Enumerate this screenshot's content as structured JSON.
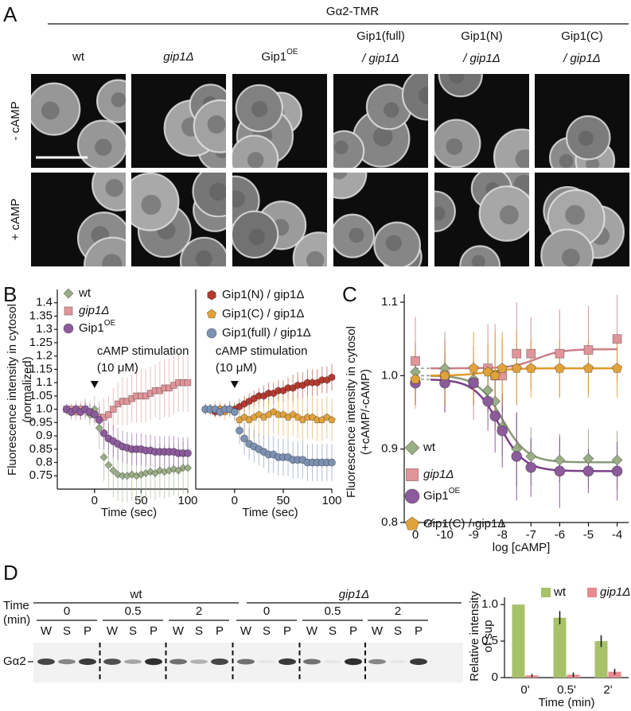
{
  "panel_labels": [
    "A",
    "B",
    "C",
    "D"
  ],
  "figure_a": {
    "title": "Gα2-TMR",
    "columns": [
      {
        "lines": [
          "wt"
        ]
      },
      {
        "lines": [
          "gip1Δ"
        ],
        "italic_lines": [
          0
        ]
      },
      {
        "lines": [
          "Gip1"
        ],
        "sup": "OE"
      },
      {
        "lines": [
          "Gip1(full)",
          "/ gip1Δ"
        ],
        "italic_lines": [
          1
        ]
      },
      {
        "lines": [
          "Gip1(N)",
          "/ gip1Δ"
        ],
        "italic_lines": [
          1
        ]
      },
      {
        "lines": [
          "Gip1(C)",
          "/ gip1Δ"
        ],
        "italic_lines": [
          1
        ]
      }
    ],
    "rows": [
      "- cAMP",
      "+ cAMP"
    ]
  },
  "chart_data": [
    {
      "type": "line",
      "ylabel": [
        "Fluorescence intensity in cytosol",
        "(normalized)"
      ],
      "xlabel": "Time (sec)",
      "annotation": [
        "cAMP stimulation",
        "(10 μM)"
      ],
      "stimulation_time": 0,
      "xlim": [
        -40,
        100
      ],
      "xticks": [
        0,
        50,
        100
      ],
      "ylim": [
        0.7,
        1.45
      ],
      "yticks": [
        0.75,
        0.8,
        0.85,
        0.9,
        0.95,
        {
          "value": 1,
          "label": "1.0"
        },
        1.05,
        1.1,
        1.15,
        1.2,
        1.25,
        1.3,
        1.35,
        1.4
      ],
      "x": [
        -30,
        -25,
        -20,
        -15,
        -10,
        -5,
        0,
        5,
        10,
        15,
        20,
        25,
        30,
        35,
        40,
        45,
        50,
        55,
        60,
        65,
        70,
        75,
        80,
        85,
        90,
        95,
        100
      ],
      "series": [
        {
          "name": "wt",
          "color": "#9aae86",
          "marker": "diamond",
          "values": [
            1.0,
            0.99,
            1.0,
            0.99,
            1.0,
            0.98,
            1.0,
            0.93,
            0.82,
            0.79,
            0.77,
            0.755,
            0.75,
            0.75,
            0.755,
            0.75,
            0.755,
            0.76,
            0.765,
            0.76,
            0.77,
            0.765,
            0.77,
            0.775,
            0.77,
            0.78,
            0.78
          ],
          "errors": [
            0.02,
            0.03,
            0.03,
            0.03,
            0.04,
            0.04,
            0.05,
            0.08,
            0.09,
            0.1,
            0.1,
            0.1,
            0.1,
            0.1,
            0.1,
            0.1,
            0.1,
            0.1,
            0.1,
            0.1,
            0.1,
            0.1,
            0.1,
            0.1,
            0.1,
            0.1,
            0.1
          ]
        },
        {
          "name": "gip1Δ",
          "italic": true,
          "color": "#e0959a",
          "marker": "square",
          "values": [
            1.0,
            1.0,
            0.99,
            1.0,
            1.0,
            0.99,
            0.98,
            0.97,
            0.97,
            0.98,
            1.0,
            1.02,
            1.03,
            1.03,
            1.04,
            1.05,
            1.05,
            1.05,
            1.06,
            1.07,
            1.07,
            1.08,
            1.08,
            1.09,
            1.1,
            1.1,
            1.1
          ],
          "errors": [
            0.02,
            0.02,
            0.03,
            0.03,
            0.03,
            0.04,
            0.04,
            0.06,
            0.07,
            0.07,
            0.08,
            0.08,
            0.09,
            0.09,
            0.09,
            0.1,
            0.1,
            0.1,
            0.1,
            0.1,
            0.11,
            0.11,
            0.11,
            0.11,
            0.11,
            0.11,
            0.11
          ]
        },
        {
          "name": "Gip1",
          "name_sup": "OE",
          "color": "#8c5b9b",
          "marker": "circle",
          "values": [
            1.0,
            0.99,
            1.0,
            0.99,
            1.0,
            0.99,
            0.98,
            0.96,
            0.91,
            0.89,
            0.88,
            0.87,
            0.86,
            0.855,
            0.85,
            0.85,
            0.85,
            0.845,
            0.845,
            0.84,
            0.84,
            0.84,
            0.84,
            0.84,
            0.835,
            0.835,
            0.835
          ],
          "errors": [
            0.02,
            0.02,
            0.02,
            0.03,
            0.03,
            0.03,
            0.03,
            0.05,
            0.06,
            0.06,
            0.06,
            0.06,
            0.06,
            0.06,
            0.06,
            0.06,
            0.06,
            0.06,
            0.06,
            0.06,
            0.06,
            0.06,
            0.06,
            0.06,
            0.06,
            0.06,
            0.06
          ]
        }
      ]
    },
    {
      "type": "line",
      "xlabel": "Time (sec)",
      "annotation": [
        "cAMP stimulation",
        "(10 μM)"
      ],
      "stimulation_time": 0,
      "xlim": [
        -40,
        100
      ],
      "xticks": [
        0,
        50,
        100
      ],
      "ylim": [
        0.7,
        1.45
      ],
      "x": [
        -30,
        -25,
        -20,
        -15,
        -10,
        -5,
        0,
        5,
        10,
        15,
        20,
        25,
        30,
        35,
        40,
        45,
        50,
        55,
        60,
        65,
        70,
        75,
        80,
        85,
        90,
        95,
        100
      ],
      "series": [
        {
          "name": "Gip1(N) / gip1Δ",
          "color": "#b43a30",
          "marker": "hexagon",
          "values": [
            1.0,
            1.0,
            0.99,
            1.0,
            1.0,
            1.0,
            1.0,
            1.01,
            1.02,
            1.03,
            1.04,
            1.05,
            1.05,
            1.06,
            1.06,
            1.07,
            1.07,
            1.08,
            1.08,
            1.09,
            1.09,
            1.1,
            1.1,
            1.1,
            1.11,
            1.11,
            1.12
          ],
          "errors": [
            0.02,
            0.02,
            0.02,
            0.02,
            0.02,
            0.02,
            0.02,
            0.03,
            0.03,
            0.03,
            0.03,
            0.03,
            0.04,
            0.04,
            0.04,
            0.04,
            0.04,
            0.04,
            0.05,
            0.05,
            0.05,
            0.05,
            0.05,
            0.05,
            0.05,
            0.05,
            0.05
          ]
        },
        {
          "name": "Gip1(C) / gip1Δ",
          "color": "#e0a23c",
          "marker": "pentagon",
          "values": [
            1.0,
            1.0,
            1.0,
            1.0,
            0.99,
            1.0,
            0.99,
            0.96,
            0.97,
            0.96,
            0.97,
            0.98,
            0.97,
            0.98,
            0.99,
            0.98,
            0.98,
            0.97,
            0.98,
            0.97,
            0.96,
            0.97,
            0.97,
            0.96,
            0.96,
            0.97,
            0.96
          ],
          "errors": [
            0.02,
            0.02,
            0.03,
            0.03,
            0.03,
            0.03,
            0.04,
            0.07,
            0.08,
            0.08,
            0.08,
            0.08,
            0.08,
            0.08,
            0.08,
            0.08,
            0.08,
            0.08,
            0.08,
            0.08,
            0.08,
            0.08,
            0.08,
            0.08,
            0.08,
            0.08,
            0.08
          ]
        },
        {
          "name": "Gip1(full) / gip1Δ",
          "color": "#7d91b3",
          "marker": "circle",
          "values": [
            1.0,
            1.0,
            1.0,
            0.99,
            1.0,
            1.0,
            0.99,
            0.92,
            0.89,
            0.87,
            0.86,
            0.85,
            0.84,
            0.83,
            0.83,
            0.82,
            0.82,
            0.82,
            0.81,
            0.81,
            0.81,
            0.8,
            0.8,
            0.8,
            0.8,
            0.8,
            0.8
          ],
          "errors": [
            0.02,
            0.02,
            0.02,
            0.02,
            0.02,
            0.03,
            0.03,
            0.05,
            0.06,
            0.06,
            0.06,
            0.06,
            0.06,
            0.07,
            0.07,
            0.07,
            0.07,
            0.07,
            0.07,
            0.07,
            0.07,
            0.07,
            0.07,
            0.07,
            0.07,
            0.07,
            0.07
          ]
        }
      ]
    },
    {
      "type": "scatter",
      "ylabel": [
        "Fluorescence intensity in cytosol",
        "(+cAMP/-cAMP)"
      ],
      "xlabel": "log [cAMP]",
      "xlim": [
        -10.5,
        -3.6
      ],
      "xticks": [
        0,
        -10,
        -9,
        -8,
        -7,
        -6,
        -5,
        -4
      ],
      "ylim": [
        0.8,
        1.1
      ],
      "yticks": [
        0.8,
        0.9,
        {
          "value": 1,
          "label": "1.0"
        },
        1.1
      ],
      "x": [
        0,
        -10,
        -9,
        -8.5,
        -8.25,
        -8,
        -7.5,
        -7,
        -6,
        -5,
        -4
      ],
      "series": [
        {
          "name": "wt",
          "color": "#9aae86",
          "line_color": "#8a9a78",
          "marker": "diamond",
          "values": [
            1.005,
            1.01,
            0.995,
            0.98,
            0.965,
            0.93,
            0.9,
            0.89,
            0.885,
            0.887,
            0.885
          ],
          "errors": [
            0.04,
            0.05,
            0.02,
            0.03,
            0.04,
            0.04,
            0.05,
            0.04,
            0.03,
            0.04,
            0.04
          ],
          "fit": {
            "start": 1.0,
            "end": 0.882,
            "ec50": -8.0
          }
        },
        {
          "name": "gip1Δ",
          "italic": true,
          "color": "#e0959a",
          "line_color": "#c98088",
          "marker": "square",
          "values": [
            1.02,
            1.0,
            0.99,
            1.01,
            1.0,
            1.0,
            1.03,
            1.03,
            1.03,
            1.035,
            1.05
          ],
          "errors": [
            0.06,
            0.05,
            0.05,
            0.06,
            0.07,
            0.05,
            0.07,
            0.05,
            0.06,
            0.06,
            0.06
          ],
          "fit": {
            "start": 1.01,
            "end": 1.036,
            "ec50": -6.8
          }
        },
        {
          "name": "Gip1",
          "name_sup": "OE",
          "color": "#8c5b9b",
          "line_color": "#7a3f8a",
          "marker": "circle",
          "values": [
            0.99,
            0.99,
            0.99,
            0.965,
            0.945,
            0.925,
            0.89,
            0.875,
            0.87,
            0.87,
            0.87
          ],
          "errors": [
            0.03,
            0.04,
            0.03,
            0.04,
            0.05,
            0.05,
            0.06,
            0.04,
            0.05,
            0.03,
            0.04
          ],
          "fit": {
            "start": 0.995,
            "end": 0.87,
            "ec50": -8.1
          }
        },
        {
          "name": "Gip1(C) / gip1Δ",
          "color": "#e0a23c",
          "line_color": "#e09a2a",
          "marker": "pentagon",
          "values": [
            0.995,
            1.0,
            1.01,
            1.005,
            1.0,
            1.01,
            1.01,
            1.01,
            1.01,
            1.01,
            1.01
          ],
          "errors": [
            0.04,
            0.04,
            0.05,
            0.04,
            0.06,
            0.05,
            0.05,
            0.04,
            0.04,
            0.04,
            0.04
          ],
          "fit": {
            "start": 1.0,
            "end": 1.01,
            "ec50": -8.5
          }
        }
      ]
    },
    {
      "type": "bar",
      "ylabel": [
        "Relative intensity",
        "of sup"
      ],
      "xlabel": "Time (min)",
      "categories": [
        "0'",
        "0.5'",
        "2'"
      ],
      "ylim": [
        0,
        1.1
      ],
      "yticks": [
        0,
        0.5,
        {
          "value": 1,
          "label": "1.0"
        }
      ],
      "series": [
        {
          "name": "wt",
          "color": "#a8c26a",
          "values": [
            1.0,
            0.82,
            0.5
          ],
          "errors": [
            0,
            0.09,
            0.08
          ]
        },
        {
          "name": "gip1Δ",
          "italic": true,
          "color": "#e58a8e",
          "values": [
            0.03,
            0.04,
            0.08
          ],
          "errors": [
            0.02,
            0.03,
            0.04
          ]
        }
      ]
    }
  ],
  "blot": {
    "time_label": [
      "Time",
      "(min)"
    ],
    "groups": [
      {
        "name": "wt"
      },
      {
        "name": "gip1Δ",
        "italic": true
      }
    ],
    "times": [
      "0",
      "0.5",
      "2",
      "0",
      "0.5",
      "2"
    ],
    "lanes": [
      "W",
      "S",
      "P",
      "W",
      "S",
      "P",
      "W",
      "S",
      "P",
      "W",
      "S",
      "P",
      "W",
      "S",
      "P",
      "W",
      "S",
      "P"
    ],
    "protein": "Gα2",
    "bands": [
      [
        0.8,
        0.5,
        0.85
      ],
      [
        0.75,
        0.35,
        0.9
      ],
      [
        0.6,
        0.3,
        0.8
      ],
      [
        0.6,
        0.05,
        0.85
      ],
      [
        0.6,
        0.05,
        0.9
      ],
      [
        0.5,
        0.05,
        0.85
      ]
    ]
  }
}
